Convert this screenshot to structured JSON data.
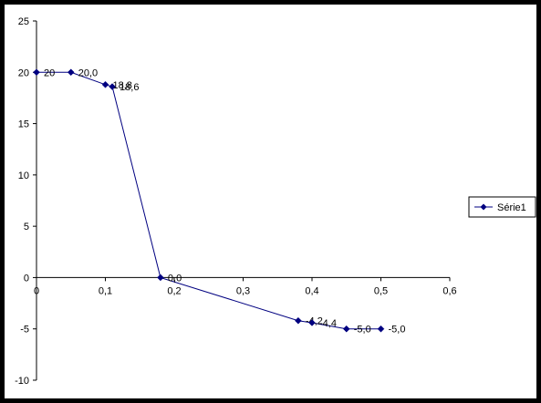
{
  "chart_data": {
    "type": "line",
    "title": "",
    "xlabel": "",
    "ylabel": "",
    "xlim": [
      0,
      0.6
    ],
    "ylim": [
      -10,
      25
    ],
    "x_ticks": [
      0,
      0.1,
      0.2,
      0.3,
      0.4,
      0.5,
      0.6
    ],
    "x_tick_labels": [
      "0",
      "0,1",
      "0,2",
      "0,3",
      "0,4",
      "0,5",
      "0,6"
    ],
    "y_ticks": [
      -10,
      -5,
      0,
      5,
      10,
      15,
      20,
      25
    ],
    "y_tick_labels": [
      "-10",
      "-5",
      "0",
      "5",
      "10",
      "15",
      "20",
      "25"
    ],
    "grid": false,
    "legend_position": "right",
    "series": [
      {
        "name": "Série1",
        "color": "#000080",
        "x": [
          0,
          0.05,
          0.1,
          0.11,
          0.18,
          0.38,
          0.4,
          0.45,
          0.5
        ],
        "y": [
          20,
          20.0,
          18.8,
          18.6,
          0.0,
          -4.2,
          -4.4,
          -5.0,
          -5.0
        ],
        "labels": [
          "20",
          "20,0",
          "18,8",
          "18,6",
          "0,0",
          "-4,2",
          "-4,4",
          "-5,0",
          "-5,0"
        ]
      }
    ]
  }
}
